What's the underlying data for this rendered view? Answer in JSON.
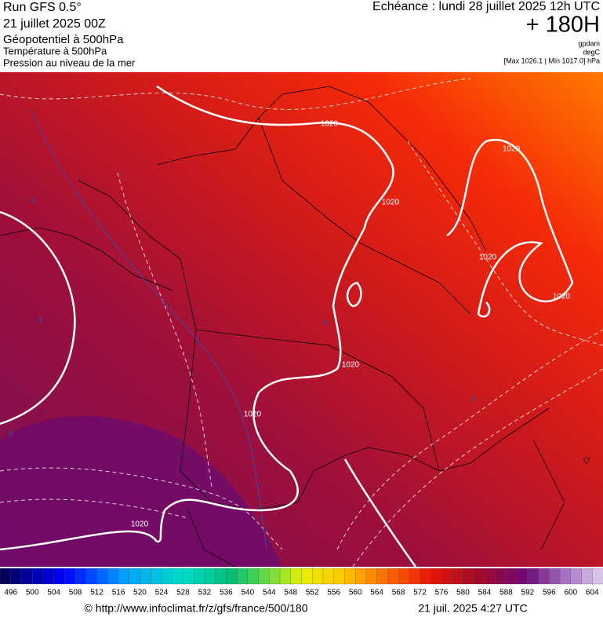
{
  "header": {
    "run": "Run GFS 0.5°",
    "run_date": "21 juillet 2025 00Z",
    "field1": "Géopotentiel à 500hPa",
    "field2": "Température à 500hPa",
    "field3": "Pression au niveau de la mer",
    "valid": "Echéance : lundi 28 juillet 2025 12h UTC",
    "lead": "+ 180H",
    "unit1": "gpdam",
    "unit2": "degC",
    "range": "[Max 1026.1 | Min 1017.0] hPa"
  },
  "map": {
    "contour_labels": [
      "1020",
      "1020",
      "1020",
      "1020",
      "1020",
      "1020",
      "1020",
      "1020"
    ],
    "temp_labels": [
      "8",
      "8",
      "8",
      "8",
      "8"
    ]
  },
  "colorbar": {
    "labels": [
      496,
      500,
      504,
      508,
      512,
      516,
      520,
      524,
      528,
      532,
      536,
      540,
      544,
      548,
      552,
      556,
      560,
      564,
      568,
      572,
      576,
      580,
      584,
      588,
      592,
      596,
      600,
      604
    ]
  },
  "footer": {
    "source": "© http://www.infoclimat.fr/z/gfs/france/500/180",
    "generated": "21 juil. 2025  4:27 UTC"
  }
}
